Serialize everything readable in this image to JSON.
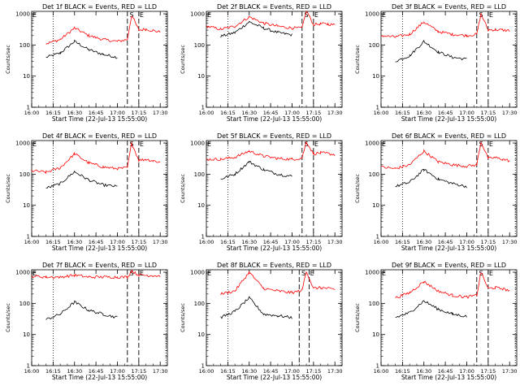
{
  "figure": {
    "y_axis_label": "Counts/sec",
    "x_axis_label": "Start Time (22-Jul-13 15:55:00)",
    "x_tick_labels": [
      "16:00",
      "16:15",
      "16:30",
      "16:45",
      "17:00",
      "17:15",
      "17:30"
    ],
    "y_tick_labels": [
      "1",
      "10",
      "100",
      "1000"
    ],
    "colors": {
      "events": "#000000",
      "lld": "#ff0000",
      "axes": "#000000",
      "background": "#ffffff"
    }
  },
  "chart_data": [
    {
      "type": "line",
      "title": "Det 1f BLACK = Events, RED = LLD",
      "xlabel": "Start Time (22-Jul-13 15:55:00)",
      "ylabel": "Counts/sec",
      "xlim": [
        "16:00",
        "17:35"
      ],
      "ylim": [
        1,
        1200
      ],
      "yscale": "log",
      "vlines": {
        "dotted": [
          "16:15",
          "17:34"
        ],
        "dashed": [
          "17:07",
          "17:15"
        ]
      },
      "markers": [
        {
          "label": "S",
          "x": "17:08"
        },
        {
          "label": "E",
          "x": "17:15"
        }
      ],
      "x": [
        "16:00",
        "16:10",
        "16:20",
        "16:30",
        "16:40",
        "16:50",
        "17:00",
        "17:07",
        "17:10",
        "17:15",
        "17:20",
        "17:25",
        "17:30"
      ],
      "series": [
        {
          "name": "Events",
          "values": [
            null,
            40,
            55,
            130,
            70,
            50,
            40,
            null,
            null,
            null,
            null,
            null,
            null
          ]
        },
        {
          "name": "LLD",
          "values": [
            null,
            110,
            150,
            350,
            200,
            150,
            130,
            150,
            900,
            300,
            320,
            290,
            260
          ]
        }
      ]
    },
    {
      "type": "line",
      "title": "Det 2f BLACK = Events, RED = LLD",
      "xlabel": "Start Time (22-Jul-13 15:55:00)",
      "ylabel": "Counts/sec",
      "xlim": [
        "16:00",
        "17:35"
      ],
      "ylim": [
        1,
        1200
      ],
      "yscale": "log",
      "vlines": {
        "dotted": [
          "16:15",
          "17:34"
        ],
        "dashed": [
          "17:07",
          "17:15"
        ]
      },
      "markers": [
        {
          "label": "S",
          "x": "17:08"
        },
        {
          "label": "E",
          "x": "17:15"
        }
      ],
      "x": [
        "16:00",
        "16:10",
        "16:20",
        "16:30",
        "16:40",
        "16:50",
        "17:00",
        "17:07",
        "17:10",
        "17:15",
        "17:20",
        "17:25",
        "17:30"
      ],
      "series": [
        {
          "name": "Events",
          "values": [
            null,
            190,
            250,
            550,
            350,
            250,
            210,
            null,
            null,
            null,
            null,
            null,
            null
          ]
        },
        {
          "name": "LLD",
          "values": [
            400,
            320,
            400,
            800,
            500,
            400,
            350,
            350,
            1300,
            450,
            480,
            470,
            440
          ]
        }
      ]
    },
    {
      "type": "line",
      "title": "Det 3f BLACK = Events, RED = LLD",
      "xlabel": "Start Time (22-Jul-13 15:55:00)",
      "ylabel": "Counts/sec",
      "xlim": [
        "16:00",
        "17:35"
      ],
      "ylim": [
        1,
        1200
      ],
      "yscale": "log",
      "vlines": {
        "dotted": [
          "16:15",
          "17:34"
        ],
        "dashed": [
          "17:07",
          "17:15"
        ]
      },
      "markers": [
        {
          "label": "S",
          "x": "17:08"
        },
        {
          "label": "E",
          "x": "17:15"
        }
      ],
      "x": [
        "16:00",
        "16:10",
        "16:20",
        "16:30",
        "16:40",
        "16:50",
        "17:00",
        "17:07",
        "17:10",
        "17:15",
        "17:20",
        "17:25",
        "17:30"
      ],
      "series": [
        {
          "name": "Events",
          "values": [
            null,
            30,
            45,
            130,
            60,
            40,
            35,
            null,
            null,
            null,
            null,
            null,
            null
          ]
        },
        {
          "name": "LLD",
          "values": [
            200,
            180,
            220,
            550,
            270,
            220,
            200,
            220,
            1000,
            300,
            310,
            300,
            290
          ]
        }
      ]
    },
    {
      "type": "line",
      "title": "Det 4f BLACK = Events, RED = LLD",
      "xlabel": "Start Time (22-Jul-13 15:55:00)",
      "ylabel": "Counts/sec",
      "xlim": [
        "16:00",
        "17:35"
      ],
      "ylim": [
        1,
        1200
      ],
      "yscale": "log",
      "vlines": {
        "dotted": [
          "16:15",
          "17:34"
        ],
        "dashed": [
          "17:07",
          "17:15"
        ]
      },
      "markers": [
        {
          "label": "S",
          "x": "17:08"
        },
        {
          "label": "E",
          "x": "17:15"
        }
      ],
      "x": [
        "16:00",
        "16:10",
        "16:20",
        "16:30",
        "16:40",
        "16:50",
        "17:00",
        "17:07",
        "17:10",
        "17:15",
        "17:20",
        "17:25",
        "17:30"
      ],
      "series": [
        {
          "name": "Events",
          "values": [
            null,
            35,
            50,
            120,
            65,
            45,
            40,
            null,
            null,
            null,
            null,
            null,
            null
          ]
        },
        {
          "name": "LLD",
          "values": [
            130,
            115,
            160,
            450,
            230,
            170,
            150,
            160,
            1000,
            280,
            300,
            270,
            240
          ]
        }
      ]
    },
    {
      "type": "line",
      "title": "Det 5f BLACK = Events, RED = LLD",
      "xlabel": "Start Time (22-Jul-13 15:55:00)",
      "ylabel": "Counts/sec",
      "xlim": [
        "16:00",
        "17:35"
      ],
      "ylim": [
        1,
        1200
      ],
      "yscale": "log",
      "vlines": {
        "dotted": [
          "16:15",
          "17:34"
        ],
        "dashed": [
          "17:07",
          "17:15"
        ]
      },
      "markers": [
        {
          "label": "S",
          "x": "17:08"
        },
        {
          "label": "E",
          "x": "17:15"
        }
      ],
      "x": [
        "16:00",
        "16:10",
        "16:20",
        "16:30",
        "16:40",
        "16:50",
        "17:00",
        "17:07",
        "17:10",
        "17:15",
        "17:20",
        "17:25",
        "17:30"
      ],
      "series": [
        {
          "name": "Events",
          "values": [
            null,
            70,
            100,
            250,
            140,
            100,
            85,
            null,
            null,
            null,
            null,
            null,
            null
          ]
        },
        {
          "name": "LLD",
          "values": [
            300,
            300,
            350,
            550,
            380,
            320,
            300,
            330,
            1100,
            450,
            480,
            460,
            420
          ]
        }
      ]
    },
    {
      "type": "line",
      "title": "Det 6f BLACK = Events, RED = LLD",
      "xlabel": "Start Time (22-Jul-13 15:55:00)",
      "ylabel": "Counts/sec",
      "xlim": [
        "16:00",
        "17:35"
      ],
      "ylim": [
        1,
        1200
      ],
      "yscale": "log",
      "vlines": {
        "dotted": [
          "16:15",
          "17:34"
        ],
        "dashed": [
          "17:07",
          "17:15"
        ]
      },
      "markers": [
        {
          "label": "S",
          "x": "17:08"
        },
        {
          "label": "E",
          "x": "17:15"
        }
      ],
      "x": [
        "16:00",
        "16:10",
        "16:20",
        "16:30",
        "16:40",
        "16:50",
        "17:00",
        "17:07",
        "17:10",
        "17:15",
        "17:20",
        "17:25",
        "17:30"
      ],
      "series": [
        {
          "name": "Events",
          "values": [
            null,
            40,
            55,
            140,
            70,
            50,
            40,
            null,
            null,
            null,
            null,
            null,
            null
          ]
        },
        {
          "name": "LLD",
          "values": [
            170,
            150,
            200,
            550,
            250,
            200,
            180,
            200,
            1100,
            320,
            340,
            300,
            270
          ]
        }
      ]
    },
    {
      "type": "line",
      "title": "Det 7f BLACK = Events, RED = LLD",
      "xlabel": "Start Time (22-Jul-13 15:55:00)",
      "ylabel": "Counts/sec",
      "xlim": [
        "16:00",
        "17:35"
      ],
      "ylim": [
        1,
        1200
      ],
      "yscale": "log",
      "vlines": {
        "dotted": [
          "16:15",
          "17:34"
        ],
        "dashed": [
          "17:07",
          "17:15"
        ]
      },
      "markers": [
        {
          "label": "S",
          "x": "17:08"
        },
        {
          "label": "E",
          "x": "17:15"
        }
      ],
      "x": [
        "16:00",
        "16:10",
        "16:20",
        "16:30",
        "16:40",
        "16:50",
        "17:00",
        "17:07",
        "17:10",
        "17:15",
        "17:20",
        "17:25",
        "17:30"
      ],
      "series": [
        {
          "name": "Events",
          "values": [
            null,
            30,
            45,
            110,
            60,
            45,
            35,
            null,
            null,
            null,
            null,
            null,
            null
          ]
        },
        {
          "name": "LLD",
          "values": [
            750,
            700,
            700,
            800,
            700,
            700,
            700,
            700,
            1100,
            800,
            800,
            780,
            760
          ]
        }
      ]
    },
    {
      "type": "line",
      "title": "Det 8f BLACK = Events, RED = LLD",
      "xlabel": "Start Time (22-Jul-13 15:55:00)",
      "ylabel": "Counts/sec",
      "xlim": [
        "16:00",
        "17:35"
      ],
      "ylim": [
        1,
        1200
      ],
      "yscale": "log",
      "vlines": {
        "dotted": [
          "16:15",
          "17:34"
        ],
        "dashed": [
          "17:05",
          "17:12"
        ]
      },
      "markers": [
        {
          "label": "S",
          "x": "17:06"
        },
        {
          "label": "E",
          "x": "17:12"
        }
      ],
      "x": [
        "16:00",
        "16:10",
        "16:20",
        "16:30",
        "16:40",
        "16:50",
        "17:00",
        "17:07",
        "17:10",
        "17:15",
        "17:20",
        "17:25",
        "17:30"
      ],
      "series": [
        {
          "name": "Events",
          "values": [
            null,
            35,
            55,
            150,
            45,
            40,
            35,
            null,
            null,
            null,
            null,
            null,
            null
          ]
        },
        {
          "name": "LLD",
          "values": [
            null,
            200,
            250,
            1000,
            300,
            250,
            220,
            260,
            1100,
            300,
            320,
            300,
            280
          ]
        }
      ]
    },
    {
      "type": "line",
      "title": "Det 9f BLACK = Events, RED = LLD",
      "xlabel": "Start Time (22-Jul-13 15:55:00)",
      "ylabel": "Counts/sec",
      "xlim": [
        "16:00",
        "17:35"
      ],
      "ylim": [
        1,
        1200
      ],
      "yscale": "log",
      "vlines": {
        "dotted": [
          "16:15",
          "17:34"
        ],
        "dashed": [
          "17:07",
          "17:15"
        ]
      },
      "markers": [
        {
          "label": "S",
          "x": "17:08"
        },
        {
          "label": "E",
          "x": "17:15"
        }
      ],
      "x": [
        "16:00",
        "16:10",
        "16:20",
        "16:30",
        "16:40",
        "16:50",
        "17:00",
        "17:07",
        "17:10",
        "17:15",
        "17:20",
        "17:25",
        "17:30"
      ],
      "series": [
        {
          "name": "Events",
          "values": [
            null,
            35,
            50,
            120,
            65,
            45,
            38,
            null,
            null,
            null,
            null,
            null,
            null
          ]
        },
        {
          "name": "LLD",
          "values": [
            null,
            150,
            220,
            500,
            250,
            180,
            160,
            180,
            1000,
            300,
            320,
            290,
            260
          ]
        }
      ]
    }
  ]
}
